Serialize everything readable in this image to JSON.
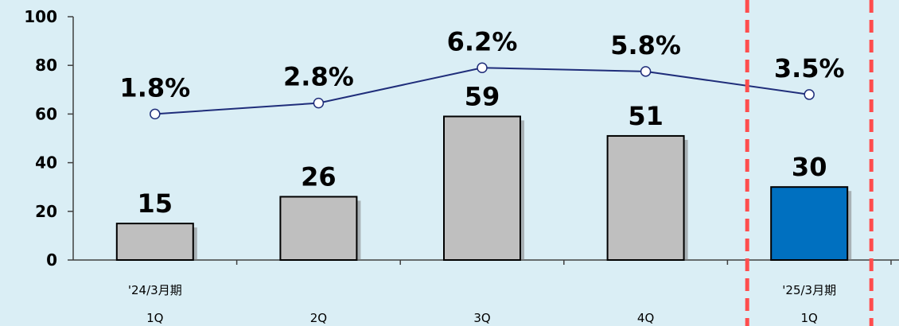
{
  "chart_data": {
    "type": "bar",
    "categories": [
      [
        "'24/3月期",
        "1Q"
      ],
      [
        "",
        "2Q"
      ],
      [
        "",
        "3Q"
      ],
      [
        "",
        "4Q"
      ],
      [
        "'25/3月期",
        "1Q"
      ]
    ],
    "series": [
      {
        "type": "bar",
        "values": [
          15,
          26,
          59,
          51,
          30
        ],
        "labels": [
          "15",
          "26",
          "59",
          "51",
          "30"
        ],
        "colors": [
          "#bfbfbf",
          "#bfbfbf",
          "#bfbfbf",
          "#bfbfbf",
          "#0070c0"
        ]
      },
      {
        "type": "line",
        "values": [
          60,
          64.5,
          79,
          77.5,
          68
        ],
        "labels": [
          "1.8%",
          "2.8%",
          "6.2%",
          "5.8%",
          "3.5%"
        ],
        "color": "#1f2d7a"
      }
    ],
    "title": "",
    "xlabel": "",
    "ylabel": "",
    "ylim": [
      0,
      100
    ],
    "yticks": [
      0,
      20,
      40,
      60,
      80,
      100
    ],
    "grid": false,
    "legend": "none",
    "highlight": {
      "category_index": 4,
      "style": "dashed-red-box",
      "color": "#ff4d4d"
    }
  }
}
